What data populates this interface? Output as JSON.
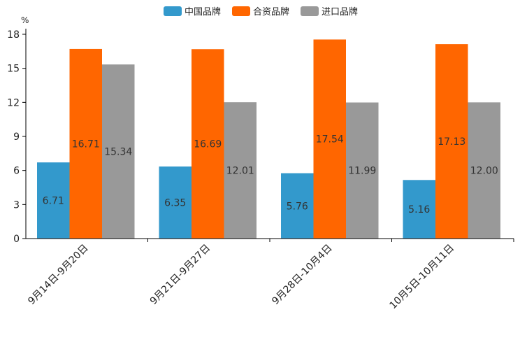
{
  "chart_data": {
    "type": "bar",
    "title": "",
    "ylabel": "%",
    "xlabel": "",
    "ylim": [
      0,
      18
    ],
    "yticks": [
      0,
      3,
      6,
      9,
      12,
      15,
      18
    ],
    "legend_position": "top-center",
    "categories": [
      "9月14日-9月20日",
      "9月21日-9月27日",
      "9月28日-10月4日",
      "10月5日-10月11日"
    ],
    "series": [
      {
        "name": "中国品牌",
        "color": "#3399cc",
        "values": [
          6.71,
          6.35,
          5.76,
          5.16
        ],
        "labels": [
          "6.71",
          "6.35",
          "5.76",
          "5.16"
        ]
      },
      {
        "name": "合资品牌",
        "color": "#ff6600",
        "values": [
          16.71,
          16.69,
          17.54,
          17.13
        ],
        "labels": [
          "16.71",
          "16.69",
          "17.54",
          "17.13"
        ]
      },
      {
        "name": "进口品牌",
        "color": "#999999",
        "values": [
          15.34,
          12.01,
          11.99,
          12.0
        ],
        "labels": [
          "15.34",
          "12.01",
          "11.99",
          "12.00"
        ]
      }
    ]
  }
}
